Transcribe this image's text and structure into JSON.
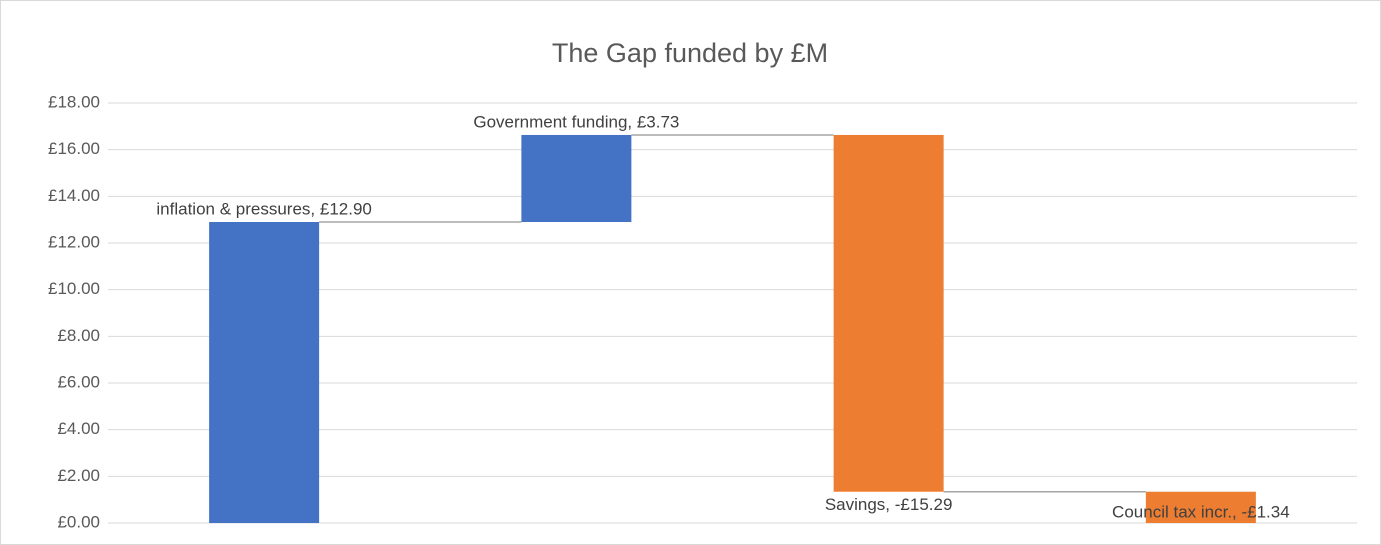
{
  "chart_data": {
    "type": "waterfall",
    "title": "The Gap funded by £M",
    "values": [
      12.9,
      3.73,
      -15.29,
      -1.34
    ],
    "value_labels": [
      "inflation & pressures, £12.90",
      "Government funding, £3.73",
      "Savings, -£15.29",
      "Council tax incr., -£1.34"
    ],
    "increase_color": "#4472c4",
    "decrease_color": "#ed7d31",
    "ylim": [
      0,
      18
    ],
    "yticks": [
      {
        "value": 0,
        "label": "£0.00"
      },
      {
        "value": 2,
        "label": "£2.00"
      },
      {
        "value": 4,
        "label": "£4.00"
      },
      {
        "value": 6,
        "label": "£6.00"
      },
      {
        "value": 8,
        "label": "£8.00"
      },
      {
        "value": 10,
        "label": "£10.00"
      },
      {
        "value": 12,
        "label": "£12.00"
      },
      {
        "value": 14,
        "label": "£14.00"
      },
      {
        "value": 16,
        "label": "£16.00"
      },
      {
        "value": 18,
        "label": "£18.00"
      }
    ],
    "grid": true
  }
}
